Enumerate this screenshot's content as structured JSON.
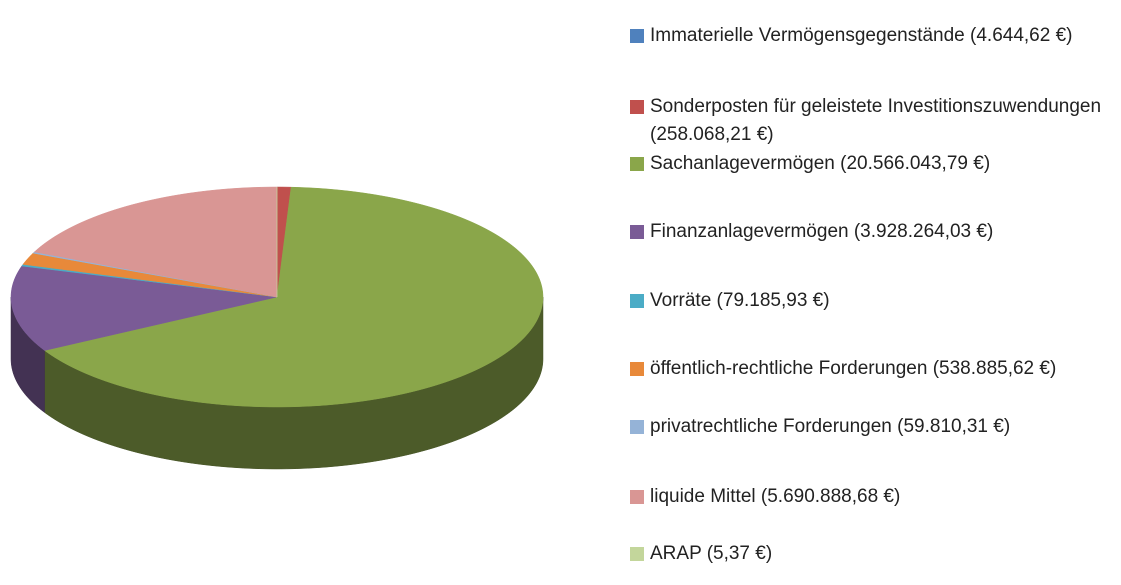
{
  "chart_data": {
    "type": "pie3d",
    "categories": [
      "Immaterielle Vermögensgegenstände",
      "Sonderposten für geleistete Investitionszuwendungen",
      "Sachanlagevermögen",
      "Finanzanlagevermögen",
      "Vorräte",
      "öffentlich-rechtliche Forderungen",
      "privatrechtliche Forderungen",
      "liquide Mittel",
      "ARAP"
    ],
    "values": [
      4644.62,
      258068.21,
      20566043.79,
      3928264.03,
      79185.93,
      538885.62,
      59810.31,
      5690888.68,
      5.37
    ],
    "value_labels": [
      "(4.644,62 €)",
      "(258.068,21 €)",
      "(20.566.043,79 €)",
      "(3.928.264,03 €)",
      "(79.185,93 €)",
      "(538.885,62 €)",
      "(59.810,31 €)",
      "(5.690.888,68 €)",
      "(5,37 €)"
    ],
    "colors": [
      "#4f81bd",
      "#c0504d",
      "#8aa64a",
      "#7a5b96",
      "#4bacc6",
      "#e8893a",
      "#95b3d7",
      "#d99694",
      "#c3d69b"
    ],
    "legend": "right"
  }
}
